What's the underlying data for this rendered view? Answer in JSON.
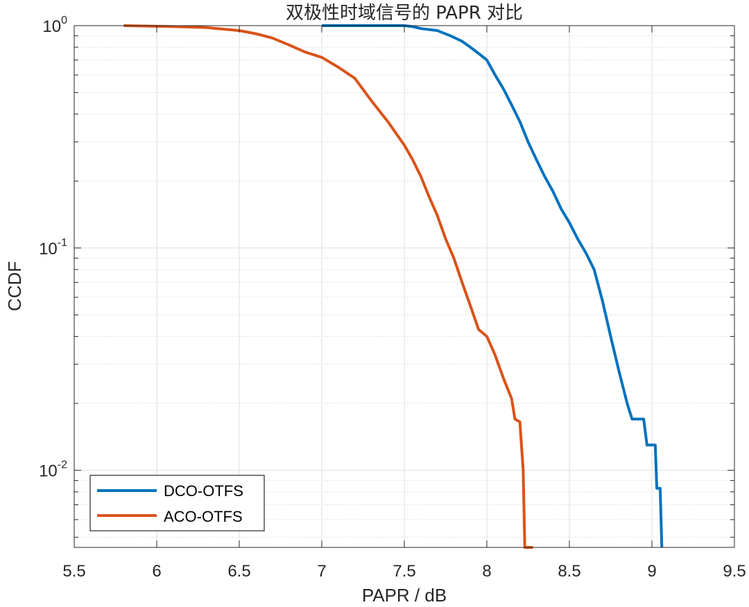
{
  "chart_data": {
    "type": "line",
    "title": "双极性时域信号的 PAPR 对比",
    "xlabel": "PAPR / dB",
    "ylabel": "CCDF",
    "xlim": [
      5.5,
      9.5
    ],
    "ylim": [
      0.0045,
      1.0
    ],
    "yscale": "log",
    "grid": true,
    "minor_grid": true,
    "xticks": [
      "5.5",
      "6",
      "6.5",
      "7",
      "7.5",
      "8",
      "8.5",
      "9",
      "9.5"
    ],
    "yticks": [
      {
        "base": "10",
        "exp": "0"
      },
      {
        "base": "10",
        "exp": "-1"
      },
      {
        "base": "10",
        "exp": "-2"
      }
    ],
    "legend_position": "bottom-left",
    "series": [
      {
        "name": "DCO-OTFS",
        "color": "#0072BD",
        "points": [
          [
            7.0,
            1.0
          ],
          [
            7.5,
            1.0
          ],
          [
            7.55,
            0.99
          ],
          [
            7.6,
            0.97
          ],
          [
            7.7,
            0.95
          ],
          [
            7.78,
            0.9
          ],
          [
            7.85,
            0.85
          ],
          [
            7.9,
            0.8
          ],
          [
            7.95,
            0.75
          ],
          [
            8.0,
            0.7
          ],
          [
            8.05,
            0.6
          ],
          [
            8.1,
            0.52
          ],
          [
            8.15,
            0.44
          ],
          [
            8.2,
            0.37
          ],
          [
            8.25,
            0.3
          ],
          [
            8.3,
            0.25
          ],
          [
            8.35,
            0.21
          ],
          [
            8.4,
            0.18
          ],
          [
            8.45,
            0.15
          ],
          [
            8.5,
            0.13
          ],
          [
            8.55,
            0.11
          ],
          [
            8.6,
            0.095
          ],
          [
            8.65,
            0.08
          ],
          [
            8.7,
            0.058
          ],
          [
            8.75,
            0.04
          ],
          [
            8.8,
            0.028
          ],
          [
            8.85,
            0.02
          ],
          [
            8.88,
            0.017
          ],
          [
            8.95,
            0.017
          ],
          [
            8.97,
            0.013
          ],
          [
            9.02,
            0.013
          ],
          [
            9.03,
            0.0083
          ],
          [
            9.05,
            0.0083
          ],
          [
            9.06,
            0.0045
          ]
        ]
      },
      {
        "name": "ACO-OTFS",
        "color": "#D95319",
        "points": [
          [
            5.8,
            1.0
          ],
          [
            6.1,
            0.99
          ],
          [
            6.3,
            0.98
          ],
          [
            6.5,
            0.95
          ],
          [
            6.6,
            0.92
          ],
          [
            6.7,
            0.88
          ],
          [
            6.8,
            0.82
          ],
          [
            6.9,
            0.76
          ],
          [
            7.0,
            0.72
          ],
          [
            7.1,
            0.65
          ],
          [
            7.2,
            0.58
          ],
          [
            7.3,
            0.46
          ],
          [
            7.4,
            0.37
          ],
          [
            7.5,
            0.29
          ],
          [
            7.55,
            0.25
          ],
          [
            7.6,
            0.21
          ],
          [
            7.65,
            0.17
          ],
          [
            7.7,
            0.14
          ],
          [
            7.75,
            0.11
          ],
          [
            7.8,
            0.09
          ],
          [
            7.85,
            0.07
          ],
          [
            7.9,
            0.055
          ],
          [
            7.95,
            0.043
          ],
          [
            8.0,
            0.04
          ],
          [
            8.05,
            0.033
          ],
          [
            8.1,
            0.026
          ],
          [
            8.15,
            0.021
          ],
          [
            8.17,
            0.017
          ],
          [
            8.2,
            0.0165
          ],
          [
            8.22,
            0.01
          ],
          [
            8.23,
            0.0045
          ],
          [
            8.28,
            0.0045
          ]
        ]
      }
    ]
  }
}
